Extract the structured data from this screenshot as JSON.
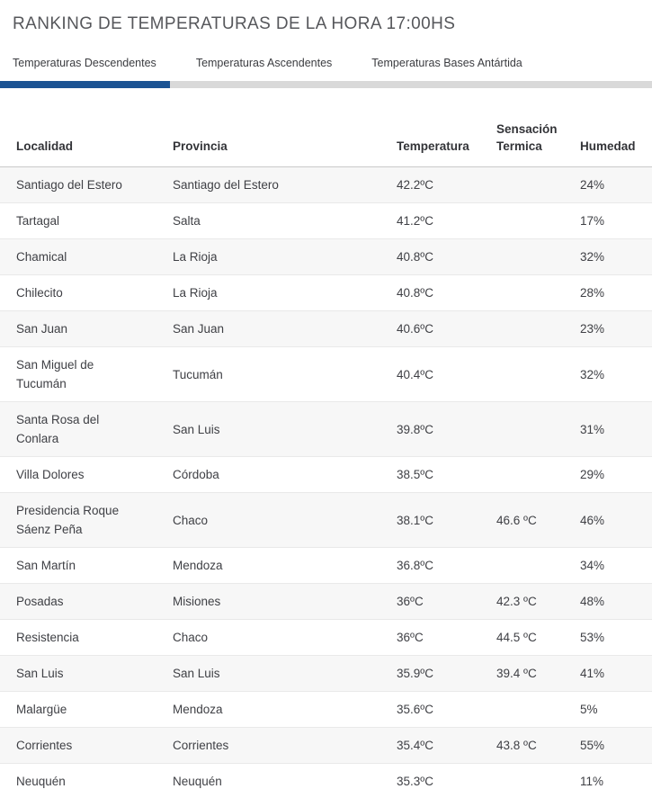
{
  "header": {
    "title": "RANKING DE TEMPERATURAS DE LA HORA 17:00HS"
  },
  "tabs": [
    {
      "label": "Temperaturas Descendentes",
      "active": true
    },
    {
      "label": "Temperaturas Ascendentes",
      "active": false
    },
    {
      "label": "Temperaturas Bases Antártida",
      "active": false
    }
  ],
  "colors": {
    "accent_navy": "#1b5393",
    "track_gray": "#d9d9d9",
    "row_alt_bg": "#f7f7f7",
    "row_border": "#e9e9e9",
    "header_border": "#c9c9c9",
    "title_text": "#56575b",
    "body_text": "#3f4045"
  },
  "table": {
    "columns": [
      "Localidad",
      "Provincia",
      "Temperatura",
      "Sensación Termica",
      "Humedad"
    ],
    "rows": [
      {
        "localidad": "Santiago del Estero",
        "provincia": "Santiago del Estero",
        "temperatura": "42.2ºC",
        "sensacion": "",
        "humedad": "24%"
      },
      {
        "localidad": "Tartagal",
        "provincia": "Salta",
        "temperatura": "41.2ºC",
        "sensacion": "",
        "humedad": "17%"
      },
      {
        "localidad": "Chamical",
        "provincia": "La Rioja",
        "temperatura": "40.8ºC",
        "sensacion": "",
        "humedad": "32%"
      },
      {
        "localidad": "Chilecito",
        "provincia": "La Rioja",
        "temperatura": "40.8ºC",
        "sensacion": "",
        "humedad": "28%"
      },
      {
        "localidad": "San Juan",
        "provincia": "San Juan",
        "temperatura": "40.6ºC",
        "sensacion": "",
        "humedad": "23%"
      },
      {
        "localidad": "San Miguel de Tucumán",
        "provincia": "Tucumán",
        "temperatura": "40.4ºC",
        "sensacion": "",
        "humedad": "32%"
      },
      {
        "localidad": "Santa Rosa del Conlara",
        "provincia": "San Luis",
        "temperatura": "39.8ºC",
        "sensacion": "",
        "humedad": "31%"
      },
      {
        "localidad": "Villa Dolores",
        "provincia": "Córdoba",
        "temperatura": "38.5ºC",
        "sensacion": "",
        "humedad": "29%"
      },
      {
        "localidad": "Presidencia Roque Sáenz Peña",
        "provincia": "Chaco",
        "temperatura": "38.1ºC",
        "sensacion": "46.6 ºC",
        "humedad": "46%"
      },
      {
        "localidad": "San Martín",
        "provincia": "Mendoza",
        "temperatura": "36.8ºC",
        "sensacion": "",
        "humedad": "34%"
      },
      {
        "localidad": "Posadas",
        "provincia": "Misiones",
        "temperatura": "36ºC",
        "sensacion": "42.3 ºC",
        "humedad": "48%"
      },
      {
        "localidad": "Resistencia",
        "provincia": "Chaco",
        "temperatura": "36ºC",
        "sensacion": "44.5 ºC",
        "humedad": "53%"
      },
      {
        "localidad": "San Luis",
        "provincia": "San Luis",
        "temperatura": "35.9ºC",
        "sensacion": "39.4 ºC",
        "humedad": "41%"
      },
      {
        "localidad": "Malargüe",
        "provincia": "Mendoza",
        "temperatura": "35.6ºC",
        "sensacion": "",
        "humedad": "5%"
      },
      {
        "localidad": "Corrientes",
        "provincia": "Corrientes",
        "temperatura": "35.4ºC",
        "sensacion": "43.8 ºC",
        "humedad": "55%"
      },
      {
        "localidad": "Neuquén",
        "provincia": "Neuquén",
        "temperatura": "35.3ºC",
        "sensacion": "",
        "humedad": "11%"
      }
    ]
  }
}
